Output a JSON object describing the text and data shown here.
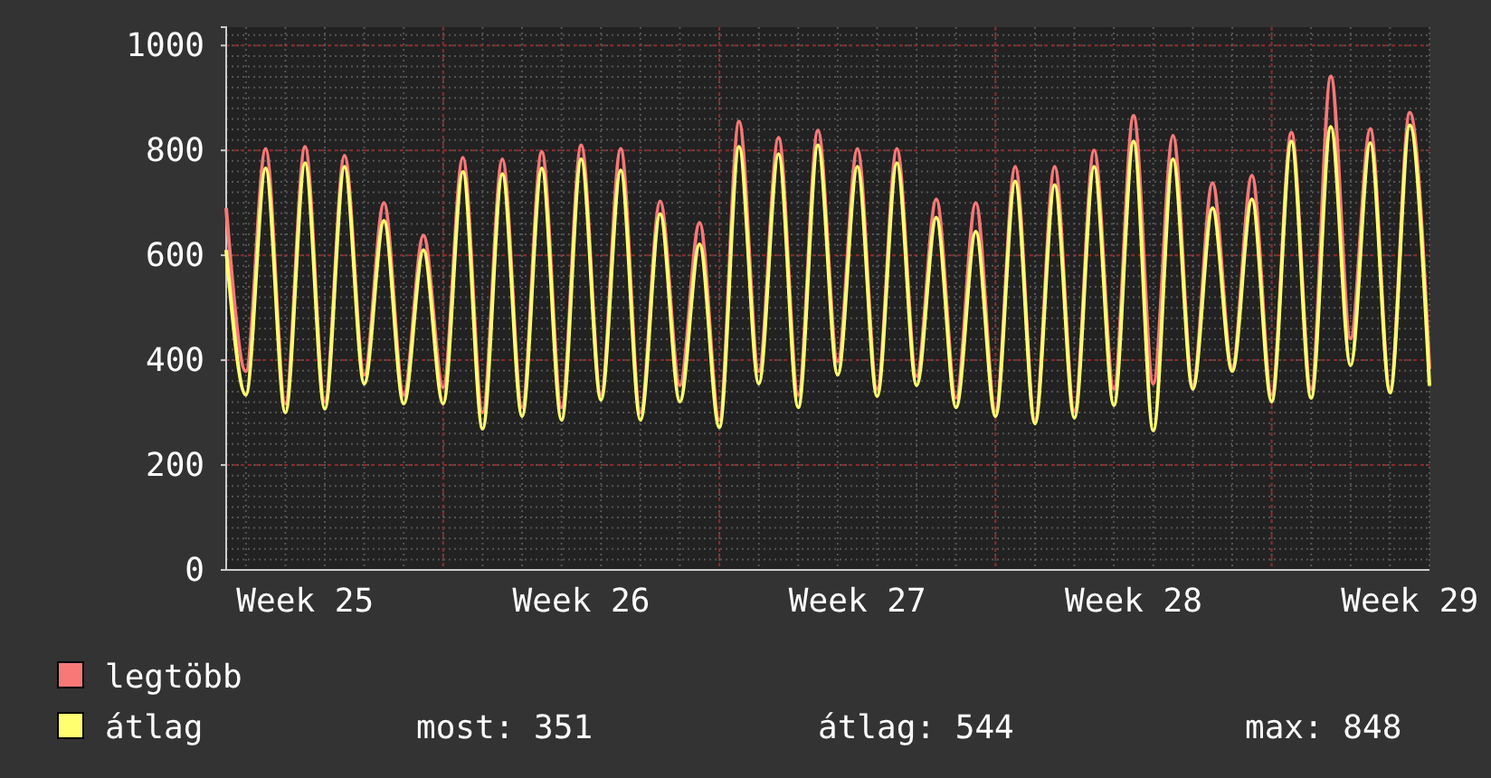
{
  "chart_data": {
    "type": "line",
    "categories": [
      null,
      null,
      null,
      null,
      "Week 25",
      null,
      null,
      null,
      null,
      null,
      null,
      null,
      null,
      null,
      null,
      null,
      null,
      null,
      "Week 26",
      null,
      null,
      null,
      null,
      null,
      null,
      null,
      null,
      null,
      null,
      null,
      null,
      null,
      "Week 27",
      null,
      null,
      null,
      null,
      null,
      null,
      null,
      null,
      null,
      null,
      null,
      null,
      null,
      "Week 28",
      null,
      null,
      null,
      null,
      null,
      null,
      null,
      null,
      null,
      null,
      null,
      null,
      null,
      "Week 29",
      null
    ],
    "series": [
      {
        "name": "legtöbb",
        "color": "#f87878",
        "values": [
          690,
          379,
          803,
          317,
          807,
          321,
          790,
          372,
          700,
          334,
          638,
          348,
          786,
          300,
          783,
          310,
          797,
          310,
          810,
          334,
          803,
          300,
          703,
          352,
          662,
          286,
          855,
          379,
          824,
          334,
          838,
          397,
          803,
          345,
          803,
          369,
          707,
          328,
          700,
          303,
          769,
          286,
          769,
          303,
          800,
          345,
          866,
          355,
          828,
          352,
          738,
          386,
          752,
          334,
          834,
          345,
          941,
          441,
          841,
          345,
          872,
          383
        ]
      },
      {
        "name": "átlag",
        "color": "#ffff70",
        "values": [
          610,
          334,
          766,
          300,
          776,
          307,
          769,
          355,
          666,
          317,
          610,
          317,
          759,
          269,
          755,
          293,
          766,
          286,
          783,
          324,
          762,
          286,
          679,
          321,
          621,
          272,
          807,
          355,
          793,
          310,
          810,
          372,
          769,
          331,
          776,
          352,
          672,
          310,
          645,
          293,
          741,
          279,
          734,
          290,
          769,
          314,
          817,
          266,
          783,
          345,
          690,
          379,
          707,
          321,
          817,
          328,
          845,
          390,
          814,
          338,
          848,
          351
        ]
      }
    ],
    "ylim": [
      0,
      1035
    ],
    "yticks": [
      0,
      200,
      400,
      600,
      800,
      1000
    ],
    "grid": true,
    "legend": "bottom left",
    "annotations": [
      "most: 351",
      "átlag: 544",
      "max: 848"
    ]
  }
}
